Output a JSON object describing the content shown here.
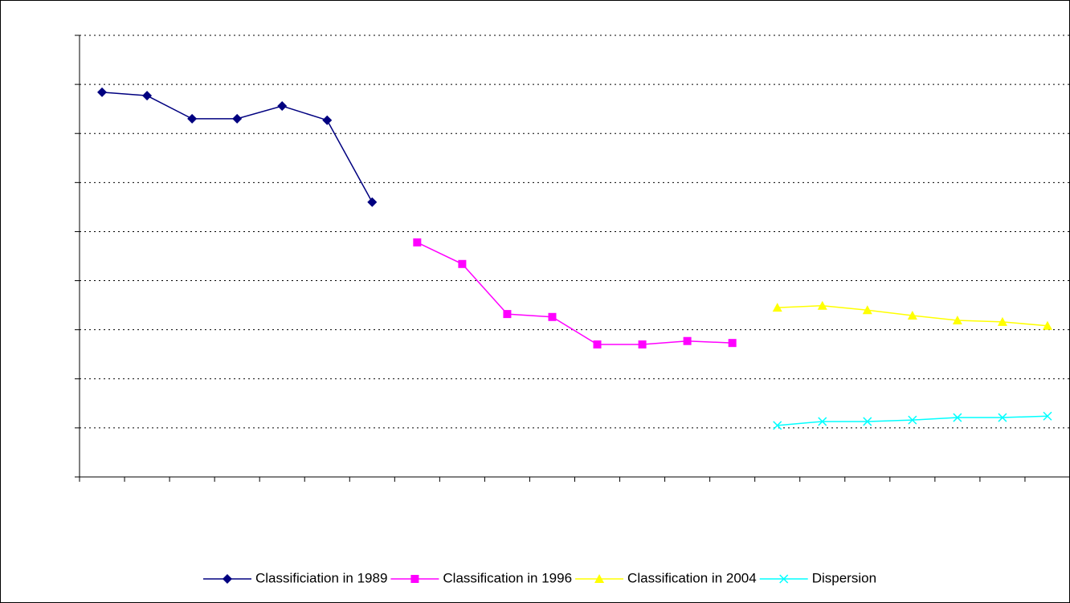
{
  "chart_data": {
    "type": "line",
    "categories": [
      null,
      null,
      null,
      null,
      null,
      null,
      null,
      null,
      null,
      null,
      null,
      null,
      null,
      null,
      null,
      null,
      null,
      null,
      null,
      null,
      null,
      null
    ],
    "series": [
      {
        "name": "Classificiation in 1989",
        "color": "#000080",
        "marker": "diamond",
        "values": [
          7.84,
          7.77,
          7.3,
          7.3,
          7.56,
          7.27,
          5.6,
          null,
          null,
          null,
          null,
          null,
          null,
          null,
          null,
          null,
          null,
          null,
          null,
          null,
          null,
          null
        ]
      },
      {
        "name": "Classification in 1996",
        "color": "#ff00ff",
        "marker": "square",
        "values": [
          null,
          null,
          null,
          null,
          null,
          null,
          null,
          4.78,
          4.34,
          3.32,
          3.26,
          2.7,
          2.7,
          2.77,
          2.73,
          null,
          null,
          null,
          null,
          null,
          null,
          null
        ]
      },
      {
        "name": "Classification in 2004",
        "color": "#ffff00",
        "marker": "triangle",
        "values": [
          null,
          null,
          null,
          null,
          null,
          null,
          null,
          null,
          null,
          null,
          null,
          null,
          null,
          null,
          null,
          3.45,
          3.49,
          3.4,
          3.29,
          3.19,
          3.16,
          3.08
        ]
      },
      {
        "name": "Dispersion",
        "color": "#00ffff",
        "marker": "x",
        "values": [
          null,
          null,
          null,
          null,
          null,
          null,
          null,
          null,
          null,
          null,
          null,
          null,
          null,
          null,
          null,
          1.05,
          1.13,
          1.13,
          1.16,
          1.21,
          1.21,
          1.24
        ]
      }
    ],
    "ylim": [
      0,
      9
    ],
    "yticks": [
      0,
      1,
      2,
      3,
      4,
      5,
      6,
      7,
      8,
      9
    ],
    "grid": true,
    "legend": "bottom"
  }
}
